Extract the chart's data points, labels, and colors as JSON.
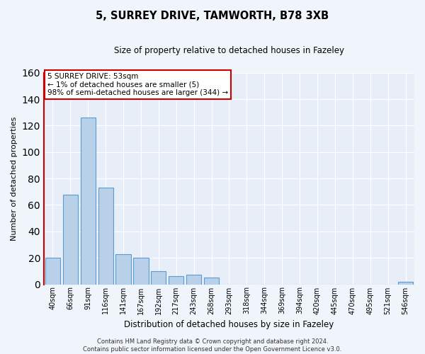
{
  "title": "5, SURREY DRIVE, TAMWORTH, B78 3XB",
  "subtitle": "Size of property relative to detached houses in Fazeley",
  "xlabel": "Distribution of detached houses by size in Fazeley",
  "ylabel": "Number of detached properties",
  "bar_labels": [
    "40sqm",
    "66sqm",
    "91sqm",
    "116sqm",
    "141sqm",
    "167sqm",
    "192sqm",
    "217sqm",
    "243sqm",
    "268sqm",
    "293sqm",
    "318sqm",
    "344sqm",
    "369sqm",
    "394sqm",
    "420sqm",
    "445sqm",
    "470sqm",
    "495sqm",
    "521sqm",
    "546sqm"
  ],
  "bar_values": [
    20,
    68,
    126,
    73,
    23,
    20,
    10,
    6,
    7,
    5,
    0,
    0,
    0,
    0,
    0,
    0,
    0,
    0,
    0,
    0,
    2
  ],
  "bar_color": "#b8d0e8",
  "bar_edge_color": "#5b9bd5",
  "highlight_color": "#cc0000",
  "ylim": [
    0,
    160
  ],
  "yticks": [
    0,
    20,
    40,
    60,
    80,
    100,
    120,
    140,
    160
  ],
  "annotation_lines": [
    "5 SURREY DRIVE: 53sqm",
    "← 1% of detached houses are smaller (5)",
    "98% of semi-detached houses are larger (344) →"
  ],
  "footer_lines": [
    "Contains HM Land Registry data © Crown copyright and database right 2024.",
    "Contains public sector information licensed under the Open Government Licence v3.0."
  ],
  "bg_color": "#e8eef8",
  "grid_color": "#ffffff",
  "fig_bg_color": "#f0f4fb"
}
